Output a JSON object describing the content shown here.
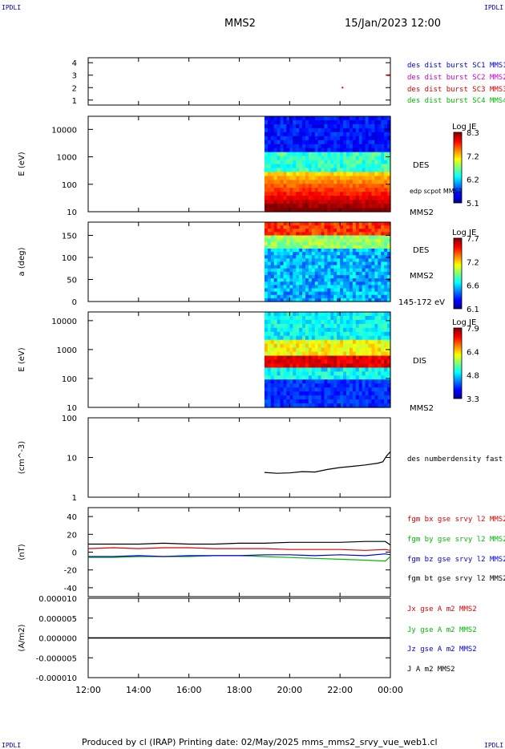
{
  "header": {
    "corner_tl": "IPDLI",
    "corner_tr": "IPDLI",
    "corner_bl": "IPDLI",
    "corner_br": "IPDLI",
    "spacecraft": "MMS2",
    "datetime": "15/Jan/2023 12:00"
  },
  "footer": "Produced by cl (IRAP)   Printing date: 02/May/2025   mms_mms2_srvy_vue_web1.cl",
  "chart_data": [
    {
      "type": "scatter",
      "panel": "burst-availability",
      "ylim": [
        0.6,
        4.4
      ],
      "yticks": [
        "1",
        "2",
        "3",
        "4"
      ],
      "series": [
        {
          "name": "des dist burst SC1 MMS1",
          "color": "#0000dd",
          "x": [],
          "y": []
        },
        {
          "name": "des dist burst SC2 MMS2",
          "color": "#cc00cc",
          "x": [],
          "y": []
        },
        {
          "name": "des dist burst SC3 MMS3",
          "color": "#dd0000",
          "x": [
            23.9,
            23.95,
            22.1
          ],
          "y": [
            3,
            3,
            2
          ]
        },
        {
          "name": "des dist burst SC4 MMS4",
          "color": "#00bb00",
          "x": [],
          "y": []
        }
      ]
    },
    {
      "type": "heatmap",
      "panel": "des-energy",
      "ylabel": "E (eV)",
      "yscale": "log",
      "ylim": [
        10,
        30000
      ],
      "yticks": [
        "10",
        "100",
        "1000",
        "10000"
      ],
      "data_start": "19:00",
      "labels": [
        "DES",
        "edp scpot MMS2",
        "MMS2"
      ],
      "colorbar": {
        "title": "Log JE",
        "ticks": [
          "8.3",
          "7.2",
          "6.2",
          "5.1"
        ],
        "range": [
          5.1,
          8.3
        ]
      }
    },
    {
      "type": "heatmap",
      "panel": "des-pitch",
      "ylabel": "a (deg)",
      "ylim": [
        0,
        180
      ],
      "yticks": [
        "0",
        "50",
        "100",
        "150"
      ],
      "data_start": "19:00",
      "labels": [
        "DES",
        "MMS2",
        "145-172 eV"
      ],
      "colorbar": {
        "title": "Log JE",
        "ticks": [
          "7.7",
          "7.2",
          "6.6",
          "6.1"
        ],
        "range": [
          6.1,
          7.7
        ]
      }
    },
    {
      "type": "heatmap",
      "panel": "dis-energy",
      "ylabel": "E (eV)",
      "yscale": "log",
      "ylim": [
        10,
        20000
      ],
      "yticks": [
        "10",
        "100",
        "1000",
        "10000"
      ],
      "data_start": "19:00",
      "labels": [
        "DIS",
        "MMS2"
      ],
      "colorbar": {
        "title": "Log JE",
        "ticks": [
          "7.9",
          "6.4",
          "4.8",
          "3.3"
        ],
        "range": [
          3.3,
          7.9
        ]
      }
    },
    {
      "type": "line",
      "panel": "density",
      "ylabel": "(cm^-3)",
      "yscale": "log",
      "ylim": [
        1,
        100
      ],
      "yticks": [
        "1",
        "10",
        "100"
      ],
      "series": [
        {
          "name": "des numberdensity fast M",
          "color": "#000000",
          "x": [
            19.0,
            19.5,
            20.0,
            20.5,
            21.0,
            21.5,
            22.0,
            22.5,
            23.0,
            23.5,
            23.7,
            23.85,
            24.0
          ],
          "y": [
            4.2,
            4.0,
            4.1,
            4.4,
            4.3,
            5.0,
            5.6,
            6.0,
            6.5,
            7.2,
            7.8,
            11.0,
            14.0
          ]
        }
      ]
    },
    {
      "type": "line",
      "panel": "magnetic-field",
      "ylabel": "(nT)",
      "ylim": [
        -50,
        50
      ],
      "yticks": [
        "-40",
        "-20",
        "0",
        "20",
        "40"
      ],
      "series": [
        {
          "name": "fgm bx gse srvy l2 MMS2",
          "color": "#dd0000",
          "x": [
            12,
            13,
            14,
            15,
            16,
            17,
            18,
            19,
            20,
            21,
            22,
            23,
            23.8,
            24
          ],
          "y": [
            4,
            5,
            4,
            5,
            5,
            4,
            4,
            4,
            3,
            3,
            3,
            2,
            3,
            2
          ]
        },
        {
          "name": "fgm by gse srvy l2 MMS2",
          "color": "#00bb00",
          "x": [
            12,
            13,
            14,
            15,
            16,
            17,
            18,
            19,
            20,
            21,
            22,
            23,
            23.8,
            24
          ],
          "y": [
            -6,
            -6,
            -5,
            -5,
            -5,
            -4,
            -4,
            -5,
            -6,
            -7,
            -8,
            -9,
            -10,
            -5
          ]
        },
        {
          "name": "fgm bz gse srvy l2 MMS2",
          "color": "#0000dd",
          "x": [
            12,
            13,
            14,
            15,
            16,
            17,
            18,
            19,
            20,
            21,
            22,
            23,
            23.8,
            24
          ],
          "y": [
            -5,
            -5,
            -4,
            -5,
            -4,
            -4,
            -4,
            -3,
            -3,
            -4,
            -3,
            -4,
            -2,
            -3
          ]
        },
        {
          "name": "fgm bt gse srvy l2 MMS2",
          "color": "#000000",
          "x": [
            12,
            13,
            14,
            15,
            16,
            17,
            18,
            19,
            20,
            21,
            22,
            23,
            23.8,
            24
          ],
          "y": [
            9,
            9,
            9,
            10,
            9,
            9,
            10,
            10,
            11,
            11,
            11,
            12,
            12,
            8
          ]
        }
      ]
    },
    {
      "type": "line",
      "panel": "current-density",
      "ylabel": "(A/m2)",
      "ylim": [
        -1e-05,
        1e-05
      ],
      "yticks": [
        "-0.000010",
        "-0.000005",
        "0.000000",
        "0.000005",
        "0.000010"
      ],
      "series": [
        {
          "name": "Jx gse A m2 MMS2",
          "color": "#dd0000",
          "x": [
            12,
            24
          ],
          "y": [
            0,
            0
          ]
        },
        {
          "name": "Jy gse A m2 MMS2",
          "color": "#00bb00",
          "x": [
            12,
            24
          ],
          "y": [
            0,
            0
          ]
        },
        {
          "name": "Jz gse A m2 MMS2",
          "color": "#0000dd",
          "x": [
            12,
            24
          ],
          "y": [
            0,
            0
          ]
        },
        {
          "name": "J A m2 MMS2",
          "color": "#000000",
          "x": [
            12,
            24
          ],
          "y": [
            0,
            0
          ]
        }
      ]
    }
  ],
  "xaxis": {
    "ticks": [
      "12:00",
      "14:00",
      "16:00",
      "18:00",
      "20:00",
      "22:00",
      "00:00"
    ],
    "range_hours": [
      12,
      24
    ]
  }
}
